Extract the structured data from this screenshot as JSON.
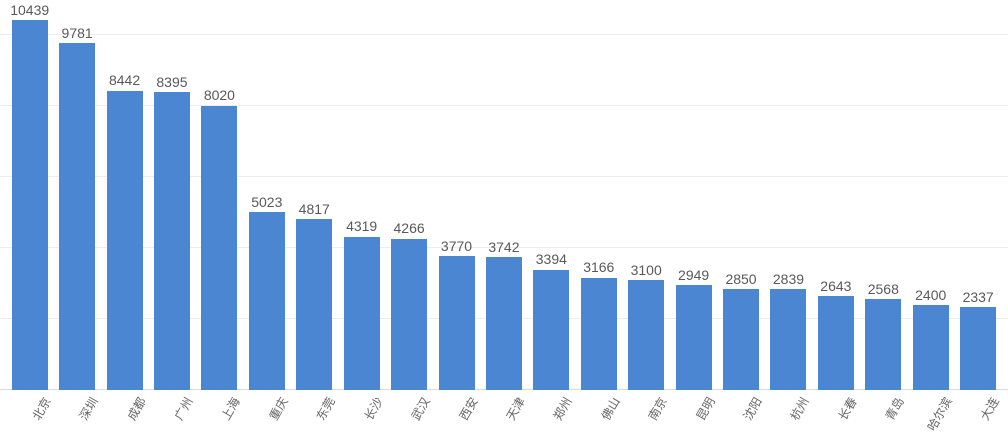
{
  "chart_data": {
    "type": "bar",
    "title": "",
    "xlabel": "",
    "ylabel": "",
    "categories": [
      "北京",
      "深圳",
      "成都",
      "广州",
      "上海",
      "重庆",
      "东莞",
      "长沙",
      "武汉",
      "西安",
      "天津",
      "郑州",
      "佛山",
      "南京",
      "昆明",
      "沈阳",
      "杭州",
      "长春",
      "青岛",
      "哈尔滨",
      "大连"
    ],
    "values": [
      10439,
      9781,
      8442,
      8395,
      8020,
      5023,
      4817,
      4319,
      4266,
      3770,
      3742,
      3394,
      3166,
      3100,
      2949,
      2850,
      2839,
      2643,
      2568,
      2400,
      2337
    ],
    "ylim": [
      0,
      11000
    ],
    "grid_interval": 2000,
    "grid": true,
    "legend": "none",
    "value_labels_shown": true,
    "x_label_rotation_deg": 60,
    "colors": {
      "bar": "#4a86d2",
      "value_label": "#595959",
      "axis_label": "#666666",
      "gridline": "#ededed",
      "axis_line": "#dcdcdc",
      "background": "#ffffff"
    }
  }
}
